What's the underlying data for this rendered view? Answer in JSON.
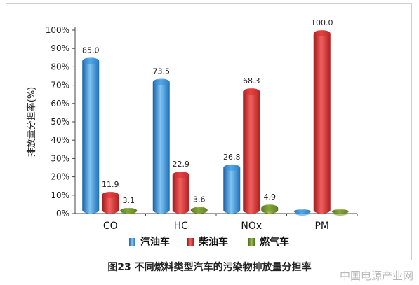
{
  "caption": "图23 不同燃料类型汽车的污染物排放量分担率",
  "watermark": "中国电源产业网",
  "chart_data": {
    "type": "bar",
    "title": "",
    "xlabel": "",
    "ylabel": "排放量分担率(%)",
    "ylim": [
      0,
      100
    ],
    "yticks": [
      "0%",
      "10%",
      "20%",
      "30%",
      "40%",
      "50%",
      "60%",
      "70%",
      "80%",
      "90%",
      "100%"
    ],
    "categories": [
      "CO",
      "HC",
      "NOx",
      "PM"
    ],
    "series": [
      {
        "name": "汽油车",
        "color": "#2f8fd8",
        "values": [
          85.0,
          73.5,
          26.8,
          0
        ],
        "labels": [
          "85.0",
          "73.5",
          "26.8",
          ""
        ]
      },
      {
        "name": "柴油车",
        "color": "#d62b2b",
        "values": [
          11.9,
          22.9,
          68.3,
          100.0
        ],
        "labels": [
          "11.9",
          "22.9",
          "68.3",
          "100.0"
        ]
      },
      {
        "name": "燃气车",
        "color": "#6f8f2a",
        "values": [
          3.1,
          3.6,
          4.9,
          0
        ],
        "labels": [
          "3.1",
          "3.6",
          "4.9",
          ""
        ]
      }
    ],
    "legend_position": "bottom",
    "grid": false
  }
}
